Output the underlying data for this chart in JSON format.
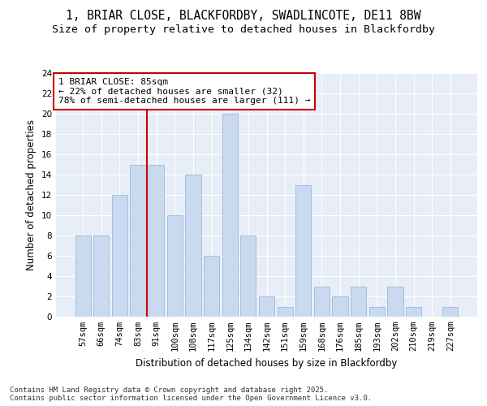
{
  "title_line1": "1, BRIAR CLOSE, BLACKFORDBY, SWADLINCOTE, DE11 8BW",
  "title_line2": "Size of property relative to detached houses in Blackfordby",
  "xlabel": "Distribution of detached houses by size in Blackfordby",
  "ylabel": "Number of detached properties",
  "categories": [
    "57sqm",
    "66sqm",
    "74sqm",
    "83sqm",
    "91sqm",
    "100sqm",
    "108sqm",
    "117sqm",
    "125sqm",
    "134sqm",
    "142sqm",
    "151sqm",
    "159sqm",
    "168sqm",
    "176sqm",
    "185sqm",
    "193sqm",
    "202sqm",
    "210sqm",
    "219sqm",
    "227sqm"
  ],
  "values": [
    8,
    8,
    12,
    15,
    15,
    10,
    14,
    6,
    20,
    8,
    2,
    1,
    13,
    3,
    2,
    3,
    1,
    3,
    1,
    0,
    1
  ],
  "bar_color": "#c9d9f0",
  "bar_edge_color": "#9eb8d8",
  "highlight_line_color": "#cc0000",
  "annotation_text": "1 BRIAR CLOSE: 85sqm\n← 22% of detached houses are smaller (32)\n78% of semi-detached houses are larger (111) →",
  "annotation_box_color": "#ffffff",
  "annotation_box_edge_color": "#cc0000",
  "ylim": [
    0,
    24
  ],
  "yticks": [
    0,
    2,
    4,
    6,
    8,
    10,
    12,
    14,
    16,
    18,
    20,
    22,
    24
  ],
  "background_color": "#e8eef8",
  "grid_color": "#ffffff",
  "footnote": "Contains HM Land Registry data © Crown copyright and database right 2025.\nContains public sector information licensed under the Open Government Licence v3.0.",
  "title_fontsize": 10.5,
  "subtitle_fontsize": 9.5,
  "axis_label_fontsize": 8.5,
  "tick_fontsize": 7.5,
  "annotation_fontsize": 8,
  "footnote_fontsize": 6.5
}
